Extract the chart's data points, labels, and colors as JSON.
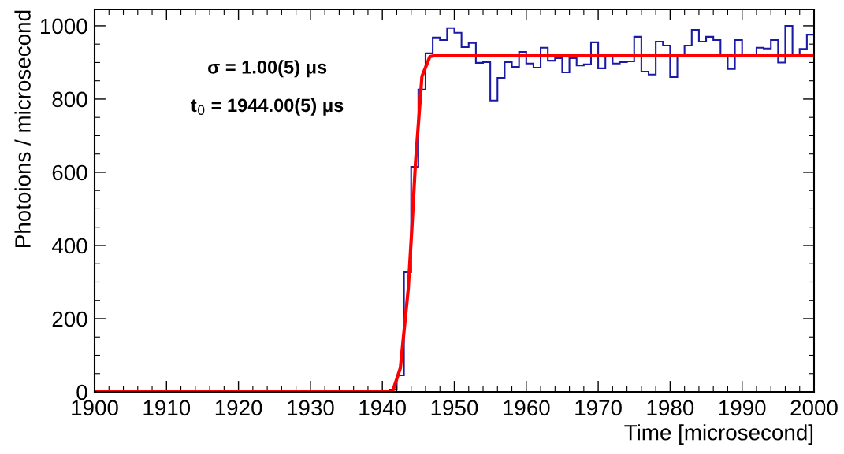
{
  "chart_data": {
    "type": "histogram",
    "xlabel": "Time [microsecond]",
    "ylabel": "Photoions / microsecond",
    "annotations": [
      "σ = 1.00(5) μs",
      "t$_{0}$ = 1944.00(5) μs"
    ],
    "bins": [
      1900,
      1901,
      1902,
      1903,
      1904,
      1905,
      1906,
      1907,
      1908,
      1909,
      1910,
      1911,
      1912,
      1913,
      1914,
      1915,
      1916,
      1917,
      1918,
      1919,
      1920,
      1921,
      1922,
      1923,
      1924,
      1925,
      1926,
      1927,
      1928,
      1929,
      1930,
      1931,
      1932,
      1933,
      1934,
      1935,
      1936,
      1937,
      1938,
      1939,
      1940,
      1941,
      1942,
      1943,
      1944,
      1945,
      1946,
      1947,
      1948,
      1949,
      1950,
      1951,
      1952,
      1953,
      1954,
      1955,
      1956,
      1957,
      1958,
      1959,
      1960,
      1961,
      1962,
      1963,
      1964,
      1965,
      1966,
      1967,
      1968,
      1969,
      1970,
      1971,
      1972,
      1973,
      1974,
      1975,
      1976,
      1977,
      1978,
      1979,
      1980,
      1981,
      1982,
      1983,
      1984,
      1985,
      1986,
      1987,
      1988,
      1989,
      1990,
      1991,
      1992,
      1993,
      1994,
      1995,
      1996,
      1997,
      1998,
      1999,
      2000
    ],
    "values": [
      0,
      0,
      0,
      0,
      0,
      0,
      0,
      0,
      2,
      0,
      0,
      0,
      0,
      0,
      0,
      0,
      0,
      0,
      0,
      0,
      0,
      0,
      0,
      0,
      0,
      0,
      0,
      0,
      0,
      0,
      0,
      0,
      0,
      0,
      0,
      0,
      0,
      0,
      0,
      0,
      2,
      6,
      45,
      327,
      615,
      826,
      925,
      968,
      961,
      994,
      981,
      942,
      953,
      899,
      901,
      796,
      858,
      901,
      888,
      929,
      897,
      886,
      940,
      905,
      912,
      873,
      912,
      892,
      895,
      955,
      884,
      916,
      897,
      901,
      903,
      970,
      875,
      867,
      957,
      946,
      860,
      920,
      946,
      989,
      957,
      970,
      961,
      920,
      882,
      961,
      920,
      918,
      940,
      938,
      961,
      900,
      1000,
      920,
      937,
      976
    ],
    "color": "#1a1aa6",
    "series": [
      {
        "type": "line",
        "color": "#ff0000",
        "x": [
          1900,
          1941.4,
          1942.5,
          1943.6,
          1944.1,
          1944.6,
          1945.5,
          1946.6,
          1947.6,
          2000
        ],
        "values": [
          0,
          0,
          65,
          282,
          447,
          626,
          862,
          916,
          920,
          920
        ]
      }
    ],
    "xlim": [
      1900,
      2000
    ],
    "ylim": [
      0,
      1045
    ],
    "xticks": [
      1900,
      1910,
      1920,
      1930,
      1940,
      1950,
      1960,
      1970,
      1980,
      1990,
      2000
    ],
    "yticks": [
      0,
      200,
      400,
      600,
      800,
      1000
    ],
    "grid": false,
    "legend": false
  }
}
